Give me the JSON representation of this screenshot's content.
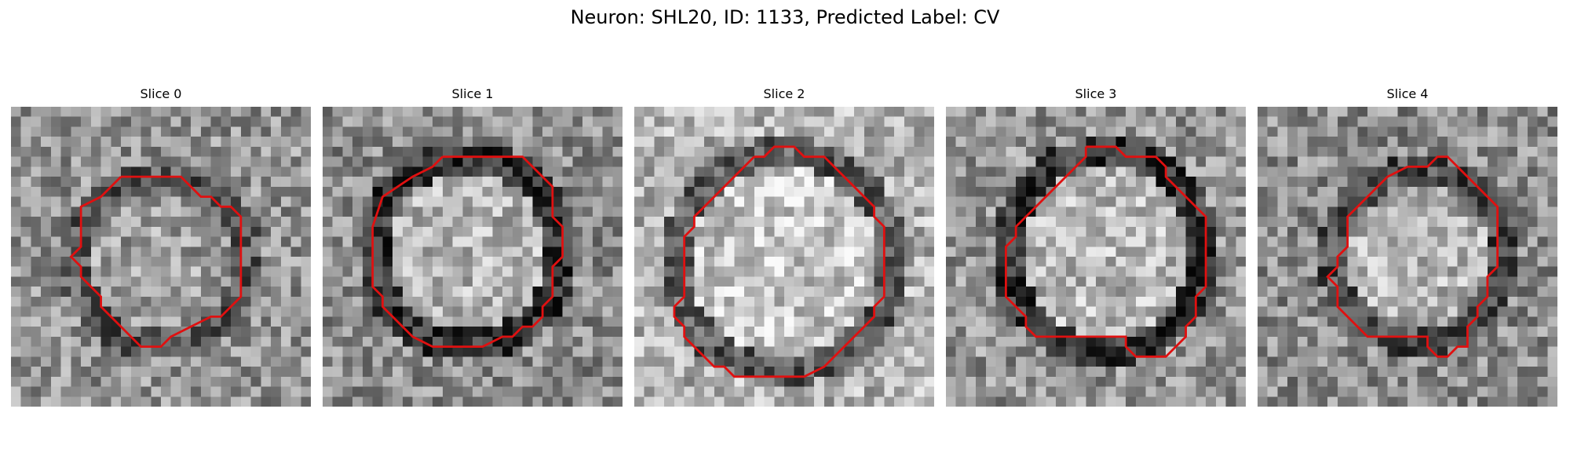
{
  "figure": {
    "title": "Neuron: SHL20, ID: 1133, Predicted Label: CV",
    "colormap": "gray",
    "contour_color": "#e01010",
    "panels": [
      {
        "title": "Slice 0"
      },
      {
        "title": "Slice 1"
      },
      {
        "title": "Slice 2"
      },
      {
        "title": "Slice 3"
      },
      {
        "title": "Slice 4"
      }
    ]
  }
}
